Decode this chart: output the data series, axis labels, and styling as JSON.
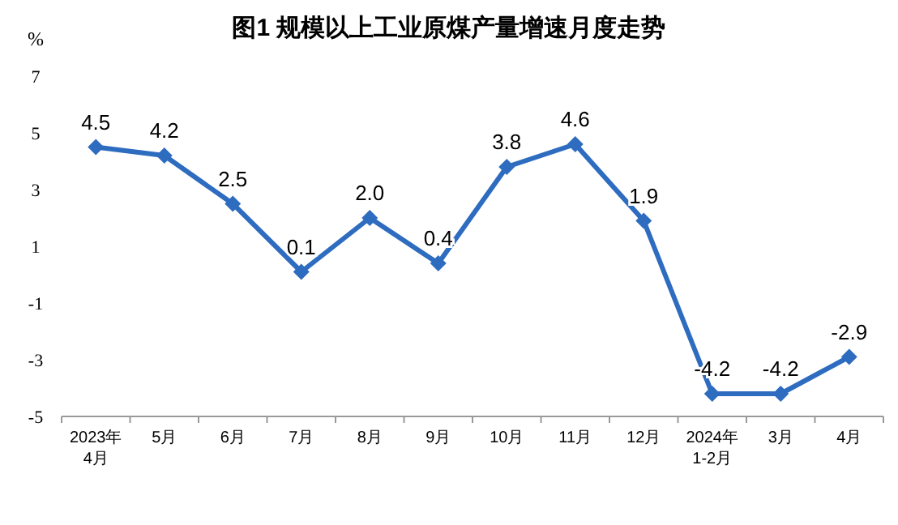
{
  "chart_data": {
    "type": "line",
    "title": "图1  规模以上工业原煤产量增速月度走势",
    "ylabel": "%",
    "categories": [
      "2023年\n4月",
      "5月",
      "6月",
      "7月",
      "8月",
      "9月",
      "10月",
      "11月",
      "12月",
      "2024年\n1-2月",
      "3月",
      "4月"
    ],
    "values": [
      4.5,
      4.2,
      2.5,
      0.1,
      2.0,
      0.4,
      3.8,
      4.6,
      1.9,
      -4.2,
      -4.2,
      -2.9
    ],
    "color": "#2e6cc0",
    "ylim": [
      -5,
      7
    ],
    "yticks": [
      -5,
      -3,
      -1,
      1,
      3,
      5,
      7
    ],
    "value_labels": [
      "4.5",
      "4.2",
      "2.5",
      "0.1",
      "2.0",
      "0.4",
      "3.8",
      "4.6",
      "1.9",
      "-4.2",
      "-4.2",
      "-2.9"
    ],
    "marker": "diamond",
    "line_style": "solid"
  }
}
